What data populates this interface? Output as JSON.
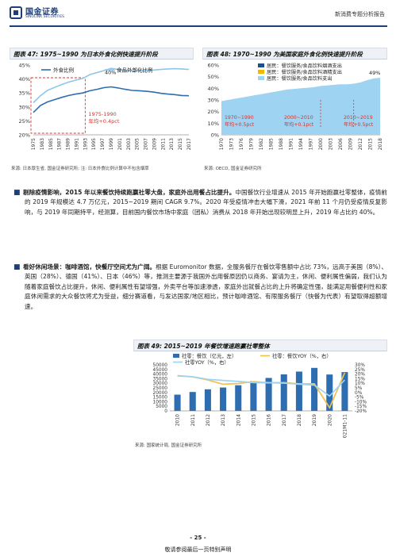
{
  "header": {
    "company": "国金证券",
    "company_en": "SINOLINK SECURITIES",
    "report_type": "新消费专题分析报告"
  },
  "fig47": {
    "title": "图表 47: 1975~1990 为日本外食化例快速提升阶段",
    "source": "来源: 日本厚生省, 国金证券研究所; 注: 日本外食比例计算中不包含烟草",
    "annotation_period": "1975-1990",
    "annotation_rate": "年均+0.4pct",
    "peak_label": "40%",
    "chart_data": {
      "type": "line",
      "x": [
        "1975",
        "1977",
        "1979",
        "1981",
        "1983",
        "1985",
        "1987",
        "1989",
        "1991",
        "1993",
        "1995",
        "1997",
        "1999",
        "2001",
        "2003",
        "2005",
        "2007",
        "2009",
        "2011",
        "2013",
        "2015",
        "2017",
        "2019"
      ],
      "x_tick_labels": [
        "1975",
        "1983",
        "1985",
        "1987",
        "1989",
        "1991",
        "1993",
        "1995",
        "1997",
        "1999",
        "2001",
        "2003",
        "2005",
        "2007",
        "2009",
        "2011",
        "2013",
        "2015",
        "2017"
      ],
      "ylim": [
        20,
        45
      ],
      "y_ticks": [
        "20%",
        "25%",
        "30%",
        "35%",
        "40%",
        "45%"
      ],
      "series": [
        {
          "name": "外食比例",
          "color": "#2e6db0",
          "values": [
            28.0,
            30.5,
            31.8,
            32.6,
            33.4,
            34.1,
            34.6,
            35.0,
            35.8,
            36.3,
            36.9,
            37.2,
            36.8,
            36.3,
            35.9,
            35.8,
            35.6,
            35.3,
            34.9,
            34.6,
            34.4,
            34.1,
            34.0
          ]
        },
        {
          "name": "食品外部化比例",
          "color": "#8ec5e8",
          "values": [
            31.5,
            34.0,
            35.9,
            37.0,
            38.0,
            38.9,
            39.6,
            40.2,
            41.6,
            42.3,
            43.0,
            43.8,
            43.4,
            43.1,
            42.8,
            43.0,
            43.1,
            43.2,
            43.4,
            43.6,
            43.7,
            43.6,
            43.4
          ]
        }
      ]
    }
  },
  "fig48": {
    "title": "图表 48: 1970~1990 为美国家庭外食化例快速提升阶段",
    "source": "来源: OECD, 国金证券研究所",
    "ann1_period": "1970~1990",
    "ann1_rate": "年均+0.5pct",
    "ann2_period": "2000~2010",
    "ann2_rate": "年均+0.1pct",
    "ann3_period": "2010~2019",
    "ann3_rate": "年均+0.5pct",
    "end_label": "49%",
    "chart_data": {
      "type": "area",
      "x": [
        "1970",
        "1972",
        "1974",
        "1976",
        "1978",
        "1980",
        "1982",
        "1984",
        "1986",
        "1988",
        "1990",
        "1992",
        "1994",
        "1996",
        "1998",
        "2000",
        "2002",
        "2004",
        "2006",
        "2008",
        "2010",
        "2012",
        "2014",
        "2016",
        "2018"
      ],
      "x_tick_labels": [
        "1970",
        "1973",
        "1976",
        "1979",
        "1982",
        "1985",
        "1988",
        "1991",
        "1994",
        "1997",
        "2000",
        "2003",
        "2006",
        "2009",
        "2012",
        "2015",
        "2018"
      ],
      "ylim": [
        0,
        60
      ],
      "y_ticks": [
        "0%",
        "10%",
        "20%",
        "30%",
        "40%",
        "50%",
        "60%"
      ],
      "series": [
        {
          "name": "居民：餐饮服务/食品饮料烟酒支出",
          "color": "#1f4e8c",
          "values": [
            27,
            28,
            29,
            30,
            31,
            32,
            33,
            34,
            35,
            36,
            37,
            37.5,
            38,
            38.5,
            39,
            40,
            40.5,
            41,
            41.5,
            41.5,
            42,
            43,
            45,
            47,
            49
          ]
        },
        {
          "name": "居民：餐饮服务/食品饮料酒精支出",
          "color": "#f2b705",
          "values": [
            28,
            29,
            30,
            31,
            32,
            33,
            34,
            35,
            36,
            37,
            38,
            38.5,
            39,
            39.5,
            40,
            41,
            41.5,
            42,
            42.5,
            42.5,
            43,
            44,
            46,
            48,
            49
          ]
        },
        {
          "name": "居民：餐饮服务/食品饮料支出",
          "color": "#9fd3f2",
          "values": [
            29,
            30,
            31,
            32,
            33,
            34,
            35,
            36,
            37,
            38,
            39,
            39.5,
            40,
            40.5,
            41,
            42,
            42.5,
            43,
            43.5,
            43.5,
            44,
            45,
            47,
            48.5,
            49
          ]
        }
      ]
    }
  },
  "bullets": [
    {
      "lead": "剔除疫情影响，2015 年以来餐饮持续跑赢社零大盘，家庭外出用餐占比提升。",
      "text": "中国餐饮行业增速从 2015 年开始跑赢社零整体，疫情前的 2019 年规模达 4.7 万亿元，2015~2019 期间 CAGR 9.7%。2020 年受疫情冲击大幅下滑，2021 年前 11 个月仍受疫情反复影响，与 2019 年同期持平，经测算，目前国内餐饮市场中家庭（团私）消费从 2018 年开始出现较明显上升，2019 年占比约 40%。"
    },
    {
      "lead": "看好休闲场景：咖啡酒馆，快餐厅空间尤为广阔。",
      "text": "根据 Euromonitor 数据，全服务餐厅在餐饮零售额中占比 73%，远高于美国（8%）、英国（28%）、德国（41%）、日本（46%）等，推测主要源于我国外出用餐原因仍以商务、宴请为主，休闲、便利属性偏弱，我们认为随着家庭餐饮占比提升，休闲、便利属性有望增强，外卖平台等加速渗透，家庭外出就餐占比的上升将确定性强，能满足用餐便利性和家庭休闲需求的大众餐饮将尤为受益，细分赛道看，与发达国家/地区相比，预计咖啡酒馆、有限服务餐厅（快餐为代表）有望取得超额增速。"
    }
  ],
  "fig49": {
    "title": "图表 49: 2015~2019 年餐饮增速跑赢社零整体",
    "source": "来源: 国家统计局, 国金证券研究所",
    "chart_data": {
      "type": "bar",
      "categories": [
        "2010",
        "2011",
        "2012",
        "2013",
        "2014",
        "2015",
        "2016",
        "2017",
        "2018",
        "2019",
        "2020",
        "2021M1-11"
      ],
      "y1lim": [
        0,
        50000
      ],
      "y1_ticks": [
        "0",
        "5000",
        "10000",
        "15000",
        "20000",
        "25000",
        "30000",
        "35000",
        "40000",
        "45000",
        "50000"
      ],
      "y2lim": [
        -20,
        30
      ],
      "y2_ticks": [
        "-20%",
        "-15%",
        "-10%",
        "-5%",
        "0%",
        "5%",
        "10%",
        "15%",
        "20%",
        "25%",
        "30%"
      ],
      "series": [
        {
          "name": "社零：餐饮（亿元，左）",
          "color": "#2e6db0",
          "axis": "left",
          "values": [
            17648,
            20543,
            23448,
            25392,
            27860,
            32310,
            35799,
            39644,
            42716,
            46721,
            39527,
            42144
          ]
        },
        {
          "name": "社零：餐饮YOY（%，右）",
          "color": "#f2c14e",
          "axis": "right",
          "values": [
            18.0,
            16.9,
            13.6,
            9.0,
            9.7,
            11.7,
            10.8,
            10.7,
            9.5,
            9.4,
            -16.6,
            21.4
          ]
        },
        {
          "name": "社零YOY（%，右）",
          "color": "#9fd3f2",
          "axis": "right",
          "values": [
            18.4,
            17.1,
            14.3,
            13.1,
            12.0,
            10.7,
            10.4,
            10.2,
            9.0,
            8.0,
            -3.9,
            13.7
          ]
        }
      ]
    }
  },
  "footer": {
    "page": "- 25 -",
    "note": "敬请参阅最后一页特别声明"
  }
}
